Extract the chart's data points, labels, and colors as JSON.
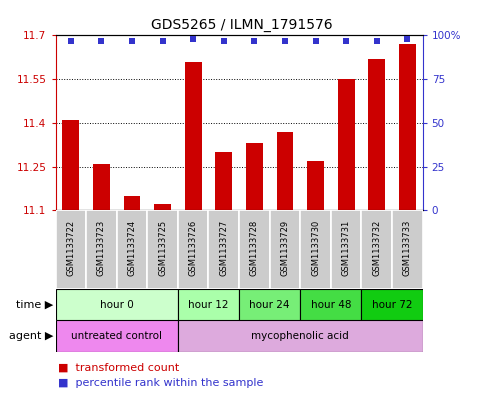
{
  "title": "GDS5265 / ILMN_1791576",
  "samples": [
    "GSM1133722",
    "GSM1133723",
    "GSM1133724",
    "GSM1133725",
    "GSM1133726",
    "GSM1133727",
    "GSM1133728",
    "GSM1133729",
    "GSM1133730",
    "GSM1133731",
    "GSM1133732",
    "GSM1133733"
  ],
  "bar_values": [
    11.41,
    11.26,
    11.15,
    11.12,
    11.61,
    11.3,
    11.33,
    11.37,
    11.27,
    11.55,
    11.62,
    11.67
  ],
  "percentile_values": [
    97,
    97,
    97,
    97,
    98,
    97,
    97,
    97,
    97,
    97,
    97,
    98
  ],
  "ymin": 11.1,
  "ymax": 11.7,
  "yticks": [
    11.1,
    11.25,
    11.4,
    11.55,
    11.7
  ],
  "right_yticks": [
    0,
    25,
    50,
    75,
    100
  ],
  "bar_color": "#cc0000",
  "dot_color": "#3333cc",
  "bar_baseline": 11.1,
  "time_groups": [
    {
      "label": "hour 0",
      "start": 0,
      "end": 4,
      "color": "#ccffcc"
    },
    {
      "label": "hour 12",
      "start": 4,
      "end": 6,
      "color": "#aaffaa"
    },
    {
      "label": "hour 24",
      "start": 6,
      "end": 8,
      "color": "#77ee77"
    },
    {
      "label": "hour 48",
      "start": 8,
      "end": 10,
      "color": "#44dd44"
    },
    {
      "label": "hour 72",
      "start": 10,
      "end": 12,
      "color": "#11cc11"
    }
  ],
  "agent_groups": [
    {
      "label": "untreated control",
      "start": 0,
      "end": 4,
      "color": "#ee88ee"
    },
    {
      "label": "mycophenolic acid",
      "start": 4,
      "end": 12,
      "color": "#ddaadd"
    }
  ],
  "legend_bar_label": "transformed count",
  "legend_dot_label": "percentile rank within the sample",
  "xlabel_time": "time",
  "xlabel_agent": "agent",
  "sample_bg_color": "#cccccc",
  "sample_border_color": "#ffffff"
}
